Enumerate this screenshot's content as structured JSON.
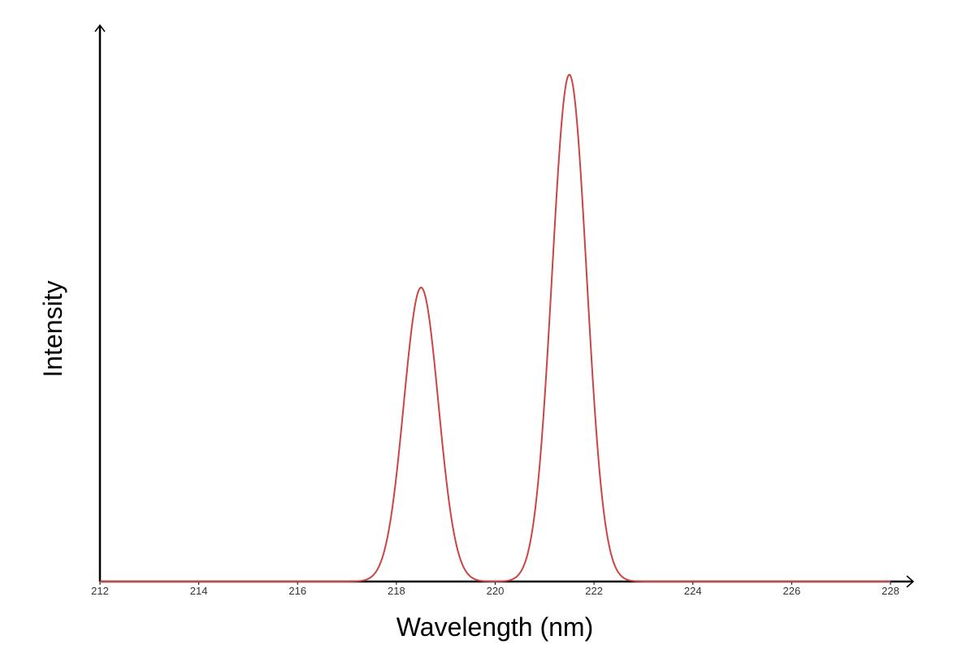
{
  "chart_data": {
    "type": "line",
    "title": "",
    "xlabel": "Wavelength (nm)",
    "ylabel": "Intensity",
    "xlim": [
      212,
      228
    ],
    "ylim": [
      0,
      1.0
    ],
    "x_ticks": [
      212,
      214,
      216,
      218,
      220,
      222,
      224,
      226,
      228
    ],
    "y_ticks": [],
    "grid": false,
    "legend": "none",
    "series": [
      {
        "color": "#cc4444",
        "shape": "sum of two gaussian peaks on a zero baseline",
        "peaks": [
          {
            "center": 218.5,
            "height": 0.58,
            "sigma": 0.35
          },
          {
            "center": 221.5,
            "height": 1.0,
            "sigma": 0.35
          }
        ]
      }
    ]
  }
}
